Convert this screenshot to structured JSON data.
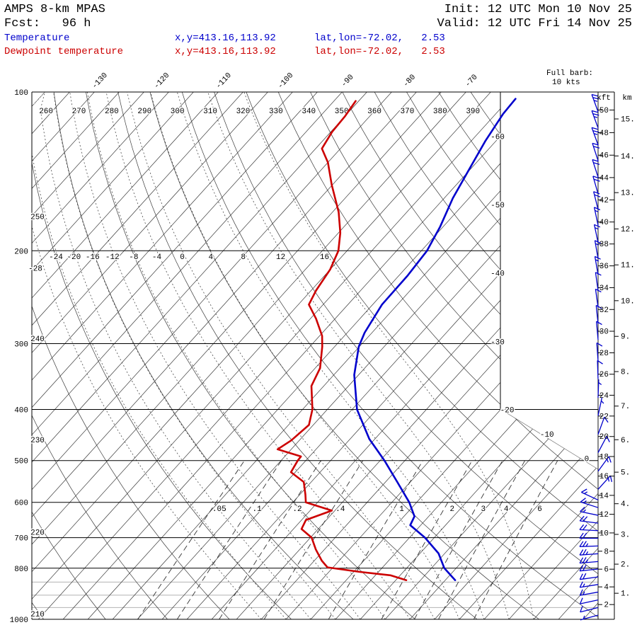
{
  "header": {
    "model": "AMPS 8-km MPAS",
    "fcst": "Fcst:   96 h",
    "init": "Init: 12 UTC Mon 10 Nov 25",
    "valid": "Valid: 12 UTC Fri 14 Nov 25"
  },
  "legend": {
    "temperature": {
      "label": "Temperature",
      "xy": "x,y=413.16,113.92",
      "latlon": "lat,lon=-72.02,   2.53"
    },
    "dewpoint": {
      "label": "Dewpoint temperature",
      "xy": "x,y=413.16,113.92",
      "latlon": "lat,lon=-72.02,   2.53"
    }
  },
  "barb_legend": {
    "line1": "Full barb:",
    "line2": "10 kts"
  },
  "colors": {
    "temperature": "#0000cc",
    "dewpoint": "#cc0000",
    "barbs": "#0000cc",
    "grid": "#3a3a3a",
    "gray_lines": "#b3b3b3"
  },
  "axes": {
    "pressure_label_ticks": [
      100,
      200,
      300,
      400,
      500,
      600,
      700,
      800,
      1000
    ],
    "pressure_gray_lines": [
      850,
      900,
      950
    ],
    "kft_header": "kft",
    "km_header": "km",
    "kft_ticks": [
      2,
      4,
      6,
      8,
      10,
      12,
      14,
      16,
      18,
      20,
      22,
      24,
      26,
      28,
      30,
      32,
      34,
      36,
      38,
      40,
      42,
      44,
      46,
      48,
      50
    ],
    "km_ticks": [
      1,
      2,
      3,
      4,
      5,
      6,
      7,
      8,
      9,
      10,
      11,
      12,
      13,
      14,
      15
    ]
  },
  "chart_data": {
    "type": "skewt_logp_sounding",
    "pressure_range_hpa": [
      100,
      1000
    ],
    "isotherms": {
      "step_c": 4,
      "min_c": -136,
      "max_c": 24,
      "labels_top": [
        -130,
        -120,
        -110,
        -100,
        -90,
        -80,
        -70
      ],
      "labels_right": [
        -60,
        -50,
        -40,
        -30,
        -20,
        -10,
        0
      ]
    },
    "dry_adiabats_k": {
      "min": 210,
      "max": 390,
      "step": 10,
      "labels_top": [
        260,
        270,
        280,
        290,
        300,
        310,
        320,
        330,
        340,
        350,
        360,
        370,
        380,
        390
      ],
      "labels_left": [
        210,
        220,
        230,
        240,
        250
      ]
    },
    "moist_adiabats_c": {
      "values": [
        -28,
        -24,
        -20,
        -16,
        -12,
        -8,
        -4,
        0,
        4,
        8,
        12,
        16
      ],
      "labels_at_200hpa": [
        -24,
        -20,
        -16,
        -12,
        -8,
        -4,
        0,
        4,
        8,
        12,
        16
      ],
      "labels_left": [
        -28
      ]
    },
    "mixing_ratio_gkg": {
      "values": [
        0.05,
        0.1,
        0.2,
        0.4,
        1,
        2,
        3,
        4,
        6
      ],
      "labels": [
        ".05",
        ".1",
        ".2",
        ".4",
        "1",
        "2",
        "3",
        "4",
        "6"
      ]
    },
    "temperature_profile_p_c": [
      [
        843,
        -2.4
      ],
      [
        800,
        -5.9
      ],
      [
        750,
        -9.0
      ],
      [
        700,
        -13.5
      ],
      [
        663,
        -17.7
      ],
      [
        638,
        -18.3
      ],
      [
        600,
        -21.2
      ],
      [
        549,
        -26.1
      ],
      [
        500,
        -31.3
      ],
      [
        455,
        -36.9
      ],
      [
        400,
        -43.2
      ],
      [
        344,
        -48.7
      ],
      [
        304,
        -52.1
      ],
      [
        286,
        -53.2
      ],
      [
        253,
        -54.5
      ],
      [
        223,
        -54.6
      ],
      [
        200,
        -55.1
      ],
      [
        180,
        -56.5
      ],
      [
        159,
        -58.6
      ],
      [
        140,
        -60.2
      ],
      [
        124,
        -61.7
      ],
      [
        110,
        -62.8
      ],
      [
        103,
        -63.0
      ]
    ],
    "dewpoint_profile_p_c": [
      [
        843,
        -10.3
      ],
      [
        825,
        -13.6
      ],
      [
        813,
        -19.0
      ],
      [
        797,
        -24.9
      ],
      [
        774,
        -26.8
      ],
      [
        737,
        -29.4
      ],
      [
        700,
        -31.8
      ],
      [
        674,
        -34.7
      ],
      [
        648,
        -35.3
      ],
      [
        622,
        -32.5
      ],
      [
        600,
        -37.9
      ],
      [
        580,
        -39.1
      ],
      [
        549,
        -41.2
      ],
      [
        526,
        -44.7
      ],
      [
        500,
        -45.3
      ],
      [
        491,
        -45.4
      ],
      [
        476,
        -50.2
      ],
      [
        458,
        -49.3
      ],
      [
        428,
        -48.7
      ],
      [
        400,
        -50.4
      ],
      [
        361,
        -54.0
      ],
      [
        334,
        -55.2
      ],
      [
        304,
        -58.0
      ],
      [
        290,
        -59.6
      ],
      [
        269,
        -63.1
      ],
      [
        253,
        -66.3
      ],
      [
        238,
        -67.2
      ],
      [
        217,
        -68.0
      ],
      [
        200,
        -69.4
      ],
      [
        185,
        -71.7
      ],
      [
        169,
        -75.0
      ],
      [
        150,
        -80.1
      ],
      [
        136,
        -84.0
      ],
      [
        128,
        -87.0
      ],
      [
        119,
        -87.8
      ],
      [
        111,
        -88.0
      ],
      [
        104,
        -88.5
      ]
    ],
    "wind_barbs": {
      "full_barb_kts": 10,
      "barbs_p_spd_dir": [
        [
          109,
          25,
          340
        ],
        [
          117,
          25,
          340
        ],
        [
          126,
          25,
          340
        ],
        [
          135,
          20,
          342
        ],
        [
          145,
          20,
          342
        ],
        [
          156,
          20,
          344
        ],
        [
          167,
          20,
          346
        ],
        [
          179,
          15,
          348
        ],
        [
          193,
          15,
          348
        ],
        [
          207,
          15,
          350
        ],
        [
          222,
          15,
          350
        ],
        [
          238,
          10,
          352
        ],
        [
          256,
          10,
          352
        ],
        [
          275,
          10,
          354
        ],
        [
          295,
          10,
          355
        ],
        [
          324,
          10,
          356
        ],
        [
          350,
          10,
          358
        ],
        [
          380,
          5,
          2
        ],
        [
          411,
          5,
          12
        ],
        [
          446,
          10,
          20
        ],
        [
          483,
          10,
          28
        ],
        [
          524,
          15,
          36
        ],
        [
          567,
          15,
          42
        ],
        [
          594,
          15,
          295
        ],
        [
          614,
          15,
          288
        ],
        [
          635,
          15,
          282
        ],
        [
          657,
          20,
          277
        ],
        [
          679,
          20,
          273
        ],
        [
          702,
          20,
          270
        ],
        [
          726,
          25,
          268
        ],
        [
          751,
          25,
          266
        ],
        [
          777,
          25,
          265
        ],
        [
          803,
          20,
          264
        ],
        [
          831,
          20,
          262
        ],
        [
          859,
          15,
          261
        ],
        [
          888,
          15,
          260
        ],
        [
          919,
          10,
          258
        ],
        [
          950,
          10,
          256
        ],
        [
          982,
          5,
          255
        ]
      ]
    }
  }
}
